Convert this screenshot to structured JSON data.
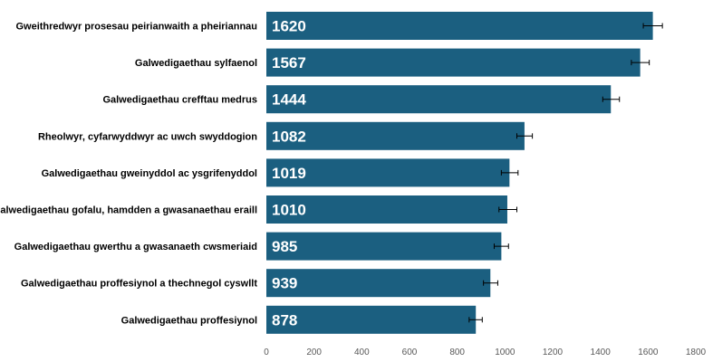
{
  "chart_data": {
    "type": "bar",
    "orientation": "horizontal",
    "title": "",
    "xlabel": "",
    "ylabel": "",
    "xlim": [
      0,
      1800
    ],
    "ticks": [
      0,
      200,
      400,
      600,
      800,
      1000,
      1200,
      1400,
      1600,
      1800
    ],
    "tick_labels": [
      "0",
      "200",
      "400",
      "600",
      "800",
      "1000",
      "1200",
      "1400",
      "1600",
      "1800"
    ],
    "grid": false,
    "legend": "none",
    "bar_color": "#1b5f80",
    "categories": [
      "Gweithredwyr prosesau peirianwaith a pheiriannau",
      "Galwedigaethau sylfaenol",
      "Galwedigaethau crefftau medrus",
      "Rheolwyr, cyfarwyddwyr ac uwch swyddogion",
      "Galwedigaethau gweinyddol ac ysgrifenyddol",
      "Galwedigaethau gofalu, hamdden a gwasanaethau eraill",
      "Galwedigaethau gwerthu a gwasanaeth cwsmeriaid",
      "Galwedigaethau proffesiynol a thechnegol cyswllt",
      "Galwedigaethau proffesiynol"
    ],
    "values": [
      1620,
      1567,
      1444,
      1082,
      1019,
      1010,
      985,
      939,
      878
    ],
    "value_labels": [
      "1620",
      "1567",
      "1444",
      "1082",
      "1019",
      "1010",
      "985",
      "939",
      "878"
    ],
    "error_low": [
      1580,
      1530,
      1410,
      1050,
      985,
      975,
      955,
      910,
      850
    ],
    "error_high": [
      1660,
      1605,
      1480,
      1115,
      1055,
      1050,
      1015,
      970,
      905
    ]
  }
}
